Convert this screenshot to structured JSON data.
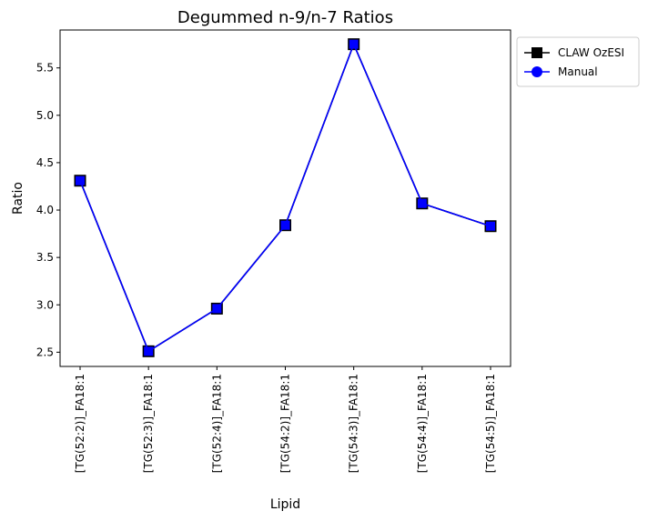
{
  "chart_data": {
    "type": "line",
    "title": "Degummed n-9/n-7 Ratios",
    "xlabel": "Lipid",
    "ylabel": "Ratio",
    "categories": [
      "[TG(52:2)]_FA18:1",
      "[TG(52:3)]_FA18:1",
      "[TG(52:4)]_FA18:1",
      "[TG(54:2)]_FA18:1",
      "[TG(54:3)]_FA18:1",
      "[TG(54:4)]_FA18:1",
      "[TG(54:5)]_FA18:1"
    ],
    "ylim": [
      2.35,
      5.9
    ],
    "yticks": [
      "2.5",
      "3.0",
      "3.5",
      "4.0",
      "4.5",
      "5.0",
      "5.5"
    ],
    "legend_position": "upper right, outside plot",
    "grid": false,
    "series": [
      {
        "name": "CLAW OzESI",
        "marker": "square",
        "color": "#000000",
        "values": [
          4.31,
          2.51,
          2.96,
          3.84,
          5.75,
          4.07,
          3.83
        ]
      },
      {
        "name": "Manual",
        "marker": "circle",
        "color": "#0000ff",
        "values": [
          4.31,
          2.51,
          2.96,
          3.84,
          5.75,
          4.07,
          3.83
        ]
      }
    ]
  }
}
